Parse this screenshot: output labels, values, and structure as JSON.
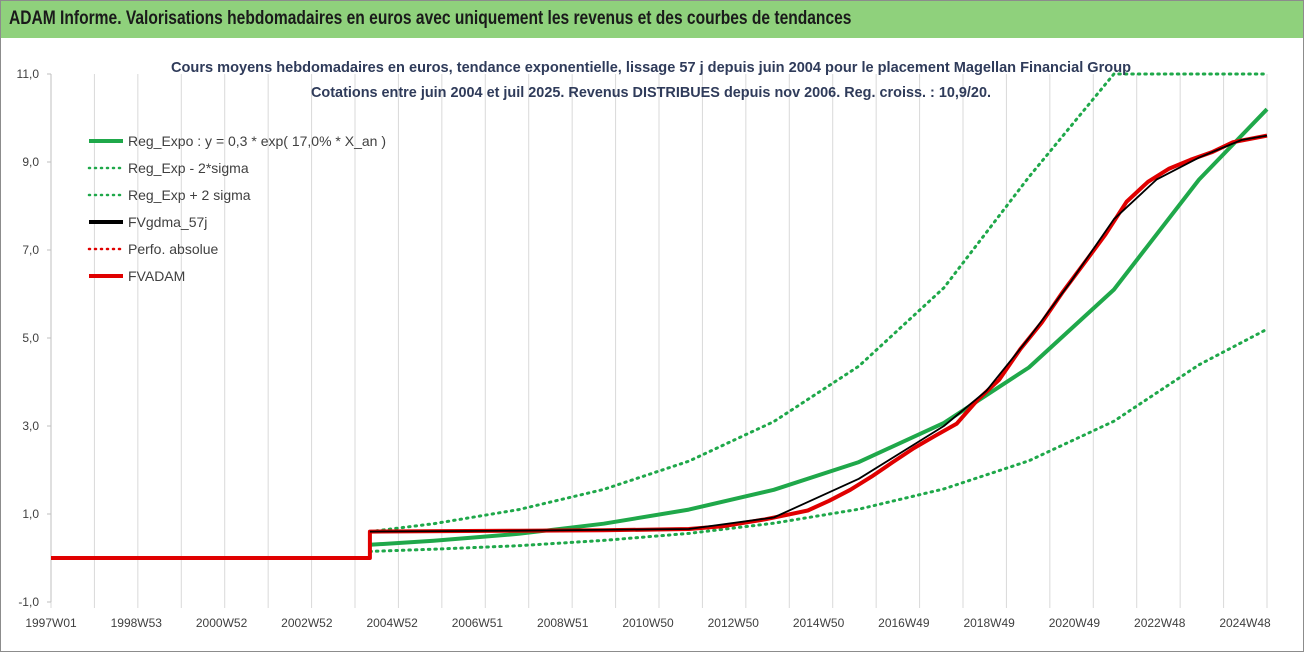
{
  "banner_title": "ADAM Informe. Valorisations hebdomadaires en euros avec uniquement les revenus et des courbes de tendances",
  "colors": {
    "banner": "#8fd17c",
    "reg_expo": "#1fa84a",
    "fvgdma": "#000000",
    "fvadam": "#e00000",
    "grid": "#d9d9d9"
  },
  "chart_data": {
    "type": "line",
    "title_lines": [
      "Cours moyens hebdomadaires en euros, tendance exponentielle, lissage 57 j depuis juin 2004 pour le placement Magellan Financial Group",
      "Cotations entre juin 2004 et juil 2025. Revenus DISTRIBUES depuis nov 2006. Reg. croiss. : 10,9/20."
    ],
    "x_tick_labels": [
      "1997W01",
      "1998W53",
      "2000W52",
      "2002W52",
      "2004W52",
      "2006W51",
      "2008W51",
      "2010W50",
      "2012W50",
      "2014W50",
      "2016W49",
      "2018W49",
      "2020W49",
      "2022W48",
      "2024W48"
    ],
    "x_range": [
      1997.0,
      2025.6
    ],
    "y_tick_labels": [
      "11,0",
      "9,0",
      "7,0",
      "5,0",
      "3,0",
      "1,0",
      "-1,0"
    ],
    "y_range": [
      -1,
      11
    ],
    "grid": "vertical",
    "legend_placement": "top-left",
    "legend": [
      {
        "label": "Reg_Expo : y = 0,3 * exp( 17,0% *  X_an )",
        "color": "#1fa84a",
        "style": "solid"
      },
      {
        "label": "Reg_Exp - 2*sigma",
        "color": "#1fa84a",
        "style": "dotted"
      },
      {
        "label": "Reg_Exp + 2 sigma",
        "color": "#1fa84a",
        "style": "dotted"
      },
      {
        "label": "FVgdma_57j",
        "color": "#000000",
        "style": "solid"
      },
      {
        "label": "Perfo. absolue",
        "color": "#e00000",
        "style": "dotted"
      },
      {
        "label": "FVADAM",
        "color": "#e00000",
        "style": "solid"
      }
    ],
    "series": [
      {
        "key": "reg_expo",
        "x": [
          2004.5,
          2006,
          2008,
          2010,
          2012,
          2014,
          2016,
          2018,
          2020,
          2022,
          2024,
          2025.6
        ],
        "y": [
          0.3,
          0.39,
          0.55,
          0.78,
          1.1,
          1.55,
          2.18,
          3.07,
          4.33,
          6.1,
          8.6,
          10.2
        ]
      },
      {
        "key": "reg_minus",
        "x": [
          2004.5,
          2006,
          2008,
          2010,
          2012,
          2014,
          2016,
          2018,
          2020,
          2022,
          2024,
          2025.6
        ],
        "y": [
          0.15,
          0.2,
          0.28,
          0.4,
          0.56,
          0.79,
          1.11,
          1.57,
          2.21,
          3.11,
          4.39,
          5.2
        ]
      },
      {
        "key": "reg_plus",
        "x": [
          2004.5,
          2006,
          2008,
          2010,
          2012,
          2014,
          2016,
          2018,
          2020,
          2022,
          2024,
          2025.6
        ],
        "y": [
          0.6,
          0.78,
          1.1,
          1.56,
          2.2,
          3.1,
          4.36,
          6.14,
          8.66,
          11.0,
          11.0,
          11.0
        ]
      },
      {
        "key": "fvadam",
        "x": [
          1997.0,
          2004.5,
          2004.5,
          2008.0,
          2010.0,
          2012.0,
          2012.8,
          2013.3,
          2013.8,
          2014.3,
          2014.8,
          2015.3,
          2015.8,
          2016.3,
          2016.8,
          2017.3,
          2017.8,
          2018.3,
          2018.8,
          2019.3,
          2019.8,
          2020.3,
          2020.8,
          2021.3,
          2021.8,
          2022.3,
          2022.8,
          2023.3,
          2023.8,
          2024.3,
          2024.8,
          2025.6
        ],
        "y": [
          0,
          0,
          0.6,
          0.62,
          0.63,
          0.66,
          0.72,
          0.8,
          0.88,
          0.98,
          1.08,
          1.3,
          1.55,
          1.85,
          2.18,
          2.5,
          2.78,
          3.05,
          3.6,
          4.05,
          4.75,
          5.35,
          6.05,
          6.7,
          7.35,
          8.1,
          8.55,
          8.85,
          9.05,
          9.22,
          9.45,
          9.6
        ]
      },
      {
        "key": "fvgdma",
        "x": [
          2004.5,
          2008.0,
          2012.0,
          2014.0,
          2016.0,
          2018.0,
          2019.0,
          2020.0,
          2021.0,
          2022.0,
          2023.0,
          2024.0,
          2025.0,
          2025.6
        ],
        "y": [
          0.6,
          0.62,
          0.66,
          0.92,
          1.8,
          3.0,
          3.8,
          5.0,
          6.3,
          7.7,
          8.6,
          9.1,
          9.5,
          9.6
        ]
      }
    ]
  }
}
